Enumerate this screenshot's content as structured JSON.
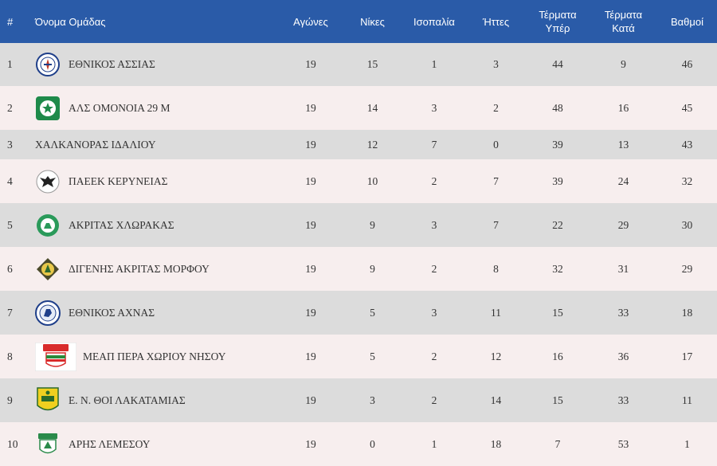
{
  "headers": {
    "rank": "#",
    "team": "Όνομα Ομάδας",
    "played": "Αγώνες",
    "wins": "Νίκες",
    "draws": "Ισοπαλία",
    "losses": "Ήττες",
    "goals_for_line1": "Τέρματα",
    "goals_for_line2": "Υπέρ",
    "goals_against_line1": "Τέρματα",
    "goals_against_line2": "Κατά",
    "points": "Βαθμοί"
  },
  "colors": {
    "header_bg": "#2a5ba8",
    "row_odd": "#dcdcdc",
    "row_even": "#f7eeee"
  },
  "rows": [
    {
      "rank": "1",
      "team": "ΕΘΝΙΚΟΣ ΑΣΣΙΑΣ",
      "logo": "ethnikos-assias-crest",
      "played": "19",
      "wins": "15",
      "draws": "1",
      "losses": "3",
      "gf": "44",
      "ga": "9",
      "pts": "46"
    },
    {
      "rank": "2",
      "team": "ΑΛΣ ΟΜΟΝΟΙΑ 29 Μ",
      "logo": "omonoia-29m-crest",
      "played": "19",
      "wins": "14",
      "draws": "3",
      "losses": "2",
      "gf": "48",
      "ga": "16",
      "pts": "45"
    },
    {
      "rank": "3",
      "team": "ΧΑΛΚΑΝΟΡΑΣ ΙΔΑΛΙΟΥ",
      "logo": "",
      "played": "19",
      "wins": "12",
      "draws": "7",
      "losses": "0",
      "gf": "39",
      "ga": "13",
      "pts": "43"
    },
    {
      "rank": "4",
      "team": "ΠΑΕΕΚ ΚΕΡΥΝΕΙΑΣ",
      "logo": "paeek-crest",
      "played": "19",
      "wins": "10",
      "draws": "2",
      "losses": "7",
      "gf": "39",
      "ga": "24",
      "pts": "32"
    },
    {
      "rank": "5",
      "team": "ΑΚΡΙΤΑΣ ΧΛΩΡΑΚΑΣ",
      "logo": "akritas-chlorakas-crest",
      "played": "19",
      "wins": "9",
      "draws": "3",
      "losses": "7",
      "gf": "22",
      "ga": "29",
      "pts": "30"
    },
    {
      "rank": "6",
      "team": "ΔΙΓΕΝΗΣ ΑΚΡΙΤΑΣ ΜΟΡΦΟΥ",
      "logo": "digenis-morfou-crest",
      "played": "19",
      "wins": "9",
      "draws": "2",
      "losses": "8",
      "gf": "32",
      "ga": "31",
      "pts": "29"
    },
    {
      "rank": "7",
      "team": "ΕΘΝΙΚΟΣ ΑΧΝΑΣ",
      "logo": "ethnikos-achnas-crest",
      "played": "19",
      "wins": "5",
      "draws": "3",
      "losses": "11",
      "gf": "15",
      "ga": "33",
      "pts": "18"
    },
    {
      "rank": "8",
      "team": "ΜΕΑΠ ΠΕΡΑ ΧΩΡΙΟΥ ΝΗΣΟΥ",
      "logo": "meap-crest",
      "played": "19",
      "wins": "5",
      "draws": "2",
      "losses": "12",
      "gf": "16",
      "ga": "36",
      "pts": "17"
    },
    {
      "rank": "9",
      "team": "Ε. Ν. ΘΟΙ ΛΑΚΑΤΑΜΙΑΣ",
      "logo": "thoi-crest",
      "played": "19",
      "wins": "3",
      "draws": "2",
      "losses": "14",
      "gf": "15",
      "ga": "33",
      "pts": "11"
    },
    {
      "rank": "10",
      "team": "ΑΡΗΣ ΛΕΜΕΣΟΥ",
      "logo": "aris-limassol-crest",
      "played": "19",
      "wins": "0",
      "draws": "1",
      "losses": "18",
      "gf": "7",
      "ga": "53",
      "pts": "1"
    }
  ]
}
